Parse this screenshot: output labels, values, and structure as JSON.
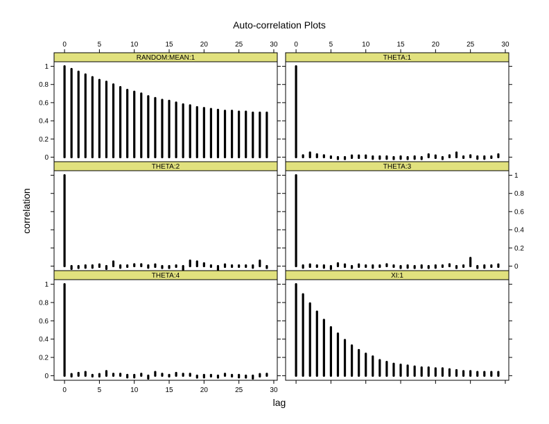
{
  "title": "Auto-correlation Plots",
  "xlabel": "lag",
  "ylabel": "correlation",
  "colors": {
    "strip": "#e1e17e",
    "stem": "#000000",
    "frame": "#000000"
  },
  "chart_data": [
    {
      "type": "bar",
      "title": "RANDOM:MEAN:1",
      "panel_position": "top-left",
      "x": [
        0,
        1,
        2,
        3,
        4,
        5,
        6,
        7,
        8,
        9,
        10,
        11,
        12,
        13,
        14,
        15,
        16,
        17,
        18,
        19,
        20,
        21,
        22,
        23,
        24,
        25,
        26,
        27,
        28,
        29
      ],
      "values": [
        1.0,
        0.97,
        0.94,
        0.91,
        0.88,
        0.85,
        0.83,
        0.8,
        0.77,
        0.74,
        0.72,
        0.7,
        0.67,
        0.65,
        0.63,
        0.62,
        0.6,
        0.58,
        0.57,
        0.55,
        0.54,
        0.53,
        0.52,
        0.51,
        0.51,
        0.5,
        0.5,
        0.49,
        0.49,
        0.49
      ],
      "xlim": [
        -1.5,
        30.5
      ],
      "ylim": [
        -0.05,
        1.05
      ],
      "xticks": [
        0,
        5,
        10,
        15,
        20,
        25,
        30
      ],
      "yticks": [
        0.0,
        0.2,
        0.4,
        0.6,
        0.8,
        1.0
      ],
      "xtick_side": "top",
      "ytick_side": "left"
    },
    {
      "type": "bar",
      "title": "THETA:1",
      "panel_position": "top-right",
      "x": [
        0,
        1,
        2,
        3,
        4,
        5,
        6,
        7,
        8,
        9,
        10,
        11,
        12,
        13,
        14,
        15,
        16,
        17,
        18,
        19,
        20,
        21,
        22,
        23,
        24,
        25,
        26,
        27,
        28,
        29
      ],
      "values": [
        1.0,
        0.02,
        0.05,
        0.03,
        0.02,
        0.0,
        -0.02,
        -0.02,
        0.01,
        0.01,
        0.01,
        -0.01,
        -0.01,
        -0.01,
        -0.02,
        -0.01,
        -0.02,
        -0.01,
        -0.02,
        0.03,
        0.01,
        -0.02,
        0.02,
        0.05,
        0.0,
        0.02,
        -0.01,
        -0.01,
        0.0,
        0.03
      ],
      "xlim": [
        -1.5,
        30.5
      ],
      "ylim": [
        -0.05,
        1.05
      ],
      "xticks": [
        0,
        5,
        10,
        15,
        20,
        25,
        30
      ],
      "yticks": [
        0.0,
        0.2,
        0.4,
        0.6,
        0.8,
        1.0
      ],
      "xtick_side": "top",
      "ytick_side": "none"
    },
    {
      "type": "bar",
      "title": "THETA:2",
      "panel_position": "middle-left",
      "x": [
        0,
        1,
        2,
        3,
        4,
        5,
        6,
        7,
        8,
        9,
        10,
        11,
        12,
        13,
        14,
        15,
        16,
        17,
        18,
        19,
        20,
        21,
        22,
        23,
        24,
        25,
        26,
        27,
        28,
        29
      ],
      "values": [
        1.0,
        -0.03,
        -0.02,
        -0.01,
        -0.01,
        0.01,
        -0.03,
        0.05,
        -0.01,
        0.0,
        0.02,
        0.02,
        -0.01,
        0.01,
        -0.02,
        -0.02,
        0.0,
        -0.04,
        0.06,
        0.05,
        0.03,
        0.0,
        -0.04,
        0.01,
        0.0,
        0.0,
        0.0,
        -0.01,
        0.06,
        -0.02
      ],
      "xlim": [
        -1.5,
        30.5
      ],
      "ylim": [
        -0.05,
        1.05
      ],
      "xticks": [],
      "yticks": [
        0.0,
        0.2,
        0.4,
        0.6,
        0.8,
        1.0
      ],
      "xtick_side": "none",
      "ytick_side": "none"
    },
    {
      "type": "bar",
      "title": "THETA:3",
      "panel_position": "middle-right",
      "x": [
        0,
        1,
        2,
        3,
        4,
        5,
        6,
        7,
        8,
        9,
        10,
        11,
        12,
        13,
        14,
        15,
        16,
        17,
        18,
        19,
        20,
        21,
        22,
        23,
        24,
        25,
        26,
        27,
        28,
        29
      ],
      "values": [
        1.0,
        -0.01,
        0.01,
        0.0,
        -0.01,
        -0.03,
        0.03,
        0.01,
        -0.02,
        0.01,
        0.0,
        -0.01,
        0.0,
        0.02,
        0.0,
        -0.02,
        -0.01,
        -0.02,
        -0.01,
        -0.02,
        -0.01,
        0.0,
        0.02,
        -0.02,
        0.0,
        0.09,
        -0.02,
        -0.01,
        0.0,
        0.01
      ],
      "xlim": [
        -1.5,
        30.5
      ],
      "ylim": [
        -0.05,
        1.05
      ],
      "xticks": [],
      "yticks": [
        0.0,
        0.2,
        0.4,
        0.6,
        0.8,
        1.0
      ],
      "xtick_side": "none",
      "ytick_side": "right"
    },
    {
      "type": "bar",
      "title": "THETA:4",
      "panel_position": "bottom-left",
      "x": [
        0,
        1,
        2,
        3,
        4,
        5,
        6,
        7,
        8,
        9,
        10,
        11,
        12,
        13,
        14,
        15,
        16,
        17,
        18,
        19,
        20,
        21,
        22,
        23,
        24,
        25,
        26,
        27,
        28,
        29
      ],
      "values": [
        1.0,
        0.01,
        0.03,
        0.04,
        0.0,
        0.01,
        0.05,
        0.02,
        0.02,
        -0.01,
        -0.01,
        0.02,
        -0.03,
        0.04,
        0.02,
        0.0,
        0.03,
        0.02,
        0.02,
        -0.02,
        -0.01,
        0.0,
        -0.02,
        0.02,
        0.0,
        -0.01,
        -0.02,
        -0.03,
        0.01,
        0.02
      ],
      "xlim": [
        -1.5,
        30.5
      ],
      "ylim": [
        -0.05,
        1.05
      ],
      "xticks": [
        0,
        5,
        10,
        15,
        20,
        25,
        30
      ],
      "yticks": [
        0.0,
        0.2,
        0.4,
        0.6,
        0.8,
        1.0
      ],
      "xtick_side": "bottom",
      "ytick_side": "left"
    },
    {
      "type": "bar",
      "title": "XI:1",
      "panel_position": "bottom-right",
      "x": [
        0,
        1,
        2,
        3,
        4,
        5,
        6,
        7,
        8,
        9,
        10,
        11,
        12,
        13,
        14,
        15,
        16,
        17,
        18,
        19,
        20,
        21,
        22,
        23,
        24,
        25,
        26,
        27,
        28,
        29
      ],
      "values": [
        1.0,
        0.89,
        0.79,
        0.7,
        0.61,
        0.53,
        0.46,
        0.39,
        0.33,
        0.28,
        0.24,
        0.21,
        0.17,
        0.15,
        0.13,
        0.12,
        0.11,
        0.1,
        0.09,
        0.09,
        0.08,
        0.08,
        0.07,
        0.06,
        0.05,
        0.05,
        0.04,
        0.04,
        0.04,
        0.04
      ],
      "xlim": [
        -1.5,
        30.5
      ],
      "ylim": [
        -0.05,
        1.05
      ],
      "xticks": [],
      "yticks": [
        0.0,
        0.2,
        0.4,
        0.6,
        0.8,
        1.0
      ],
      "xtick_side": "none",
      "ytick_side": "none"
    }
  ]
}
